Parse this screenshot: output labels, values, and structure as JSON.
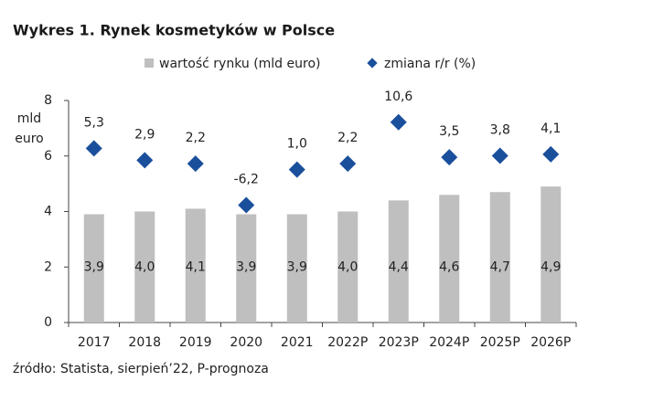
{
  "chart_data": {
    "type": "bar_scatter",
    "title": "Wykres 1. Rynek kosmetyków w Polsce",
    "ylabel": [
      "mld",
      "euro"
    ],
    "categories": [
      "2017",
      "2018",
      "2019",
      "2020",
      "2021",
      "2022P",
      "2023P",
      "2024P",
      "2025P",
      "2026P"
    ],
    "series": [
      {
        "name": "wartość rynku (mld euro)",
        "color": "#bfbfbf",
        "values": [
          3.9,
          4.0,
          4.1,
          3.9,
          3.9,
          4.0,
          4.4,
          4.6,
          4.7,
          4.9
        ],
        "value_labels": [
          "3,9",
          "4,0",
          "4,1",
          "3,9",
          "3,9",
          "4,0",
          "4,4",
          "4,6",
          "4,7",
          "4,9"
        ]
      },
      {
        "name": "zmiana r/r (%)",
        "color": "#1a4f9c",
        "axis": "y2",
        "negative_color": "#c0392b",
        "values": [
          5.3,
          2.9,
          2.2,
          -6.2,
          1.0,
          2.2,
          10.6,
          3.5,
          3.8,
          4.1
        ],
        "value_labels": [
          "5,3",
          "2,9",
          "2,2",
          "-6,2",
          "1,0",
          "2,2",
          "10,6",
          "3,5",
          "3,8",
          "4,1"
        ]
      }
    ],
    "ylim": [
      0,
      8
    ],
    "yticks": [
      0,
      2,
      4,
      6,
      8
    ],
    "y2lim": [
      -30,
      15
    ],
    "source": "źródło: Statista, sierpień’22, P-prognoza"
  }
}
